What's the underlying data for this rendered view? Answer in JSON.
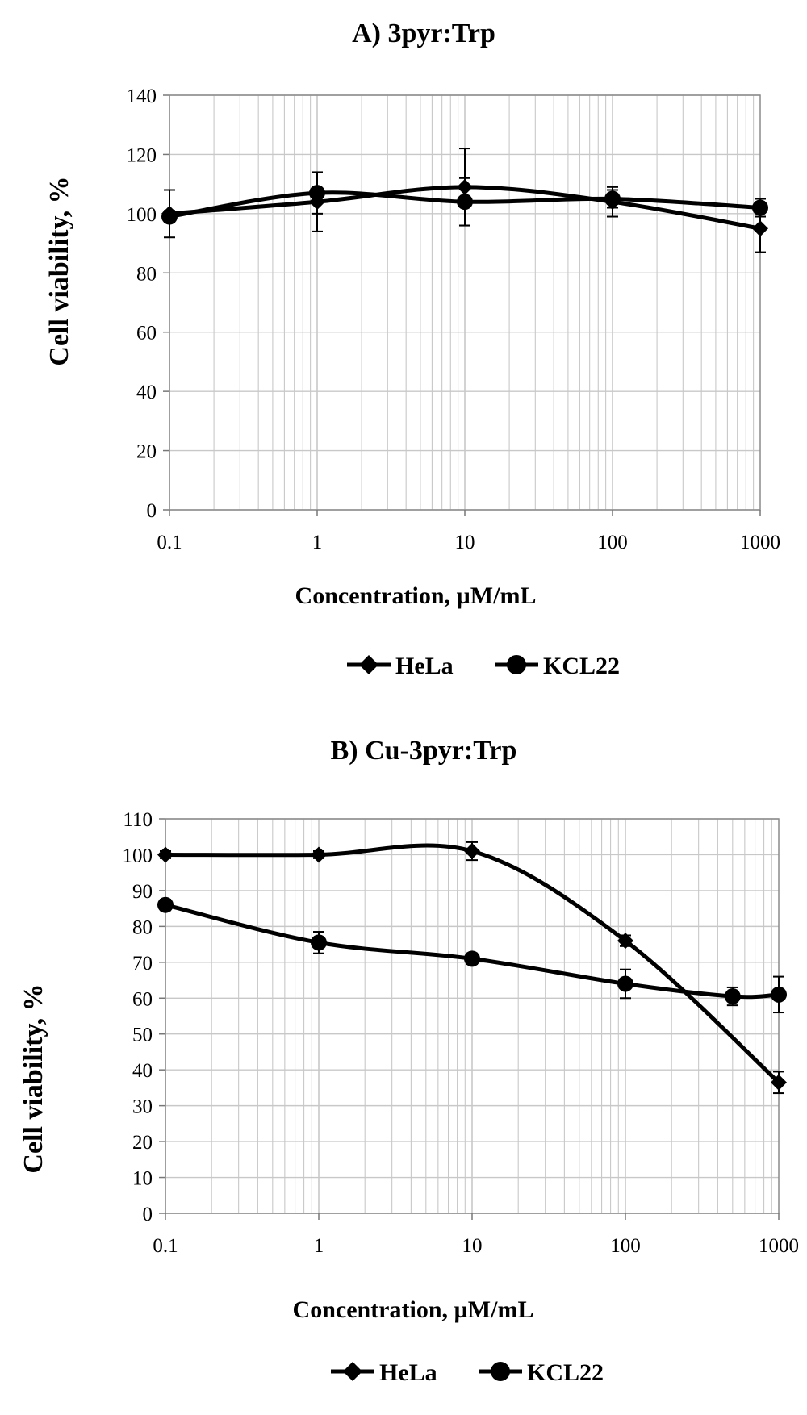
{
  "chart_data": [
    {
      "type": "line",
      "title": "A) 3pyr:Trp",
      "xlabel": "Concentration, µM/mL",
      "ylabel": "Cell viability, %",
      "x_scale": "log",
      "xlim": [
        0.1,
        1000
      ],
      "ylim": [
        0,
        140
      ],
      "x_ticks": [
        "0.1",
        "1",
        "10",
        "100",
        "1000"
      ],
      "y_ticks": [
        "0",
        "20",
        "40",
        "60",
        "80",
        "100",
        "120",
        "140"
      ],
      "grid": true,
      "legend_position": "bottom",
      "series": [
        {
          "name": "HeLa",
          "marker": "diamond",
          "x": [
            0.1,
            1,
            10,
            100,
            1000
          ],
          "y": [
            100,
            104,
            109,
            104,
            95
          ],
          "err": [
            8,
            10,
            13,
            5,
            8
          ]
        },
        {
          "name": "KCL22",
          "marker": "circle",
          "x": [
            0.1,
            1,
            10,
            100,
            1000
          ],
          "y": [
            99,
            107,
            104,
            105,
            102
          ],
          "err": [
            2,
            7,
            8,
            3,
            3
          ]
        }
      ]
    },
    {
      "type": "line",
      "title": "B) Cu-3pyr:Trp",
      "xlabel": "Concentration, µM/mL",
      "ylabel": "Cell viability, %",
      "x_scale": "log",
      "xlim": [
        0.1,
        1000
      ],
      "ylim": [
        0,
        110
      ],
      "x_ticks": [
        "0.1",
        "1",
        "10",
        "100",
        "1000"
      ],
      "y_ticks": [
        "0",
        "10",
        "20",
        "30",
        "40",
        "50",
        "60",
        "70",
        "80",
        "90",
        "100",
        "110"
      ],
      "grid": true,
      "legend_position": "bottom",
      "series": [
        {
          "name": "HeLa",
          "marker": "diamond",
          "x": [
            0.1,
            1,
            10,
            100,
            1000
          ],
          "y": [
            100,
            100,
            101,
            76,
            36.5
          ],
          "err": [
            1,
            1,
            2.5,
            1.5,
            3
          ]
        },
        {
          "name": "KCL22",
          "marker": "circle",
          "x": [
            0.1,
            1,
            10,
            100,
            500,
            1000
          ],
          "y": [
            86,
            75.5,
            71,
            64,
            60.5,
            61
          ],
          "err": [
            1.5,
            3,
            1.5,
            4,
            2.5,
            5
          ]
        }
      ]
    }
  ]
}
